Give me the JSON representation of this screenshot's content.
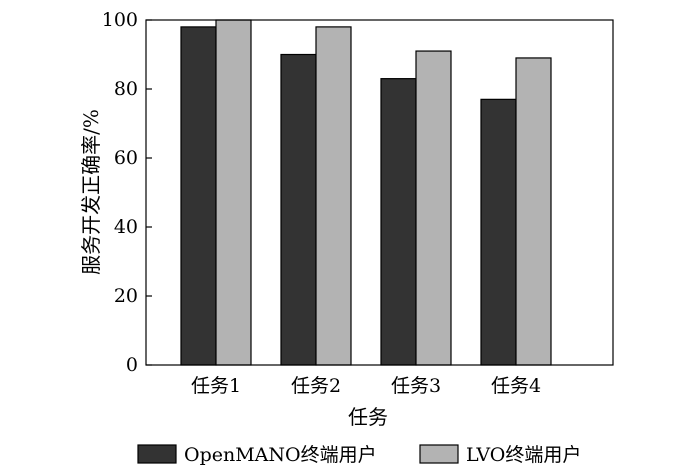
{
  "chart_data": {
    "type": "bar",
    "categories": [
      "任务1",
      "任务2",
      "任务3",
      "任务4"
    ],
    "series": [
      {
        "name": "OpenMANO终端用户",
        "values": [
          98,
          90,
          83,
          77
        ],
        "color": "#333333"
      },
      {
        "name": "LVO终端用户",
        "values": [
          100,
          98,
          91,
          89
        ],
        "color": "#b3b3b3"
      }
    ],
    "xlabel": "任务",
    "ylabel": "服务开发正确率/%",
    "ylim": [
      0,
      100
    ],
    "yticks": [
      0,
      20,
      40,
      60,
      80,
      100
    ],
    "ytick_labels": [
      "0",
      "20",
      "40",
      "60",
      "80",
      "100"
    ],
    "grid": false,
    "legend_position": "bottom"
  }
}
